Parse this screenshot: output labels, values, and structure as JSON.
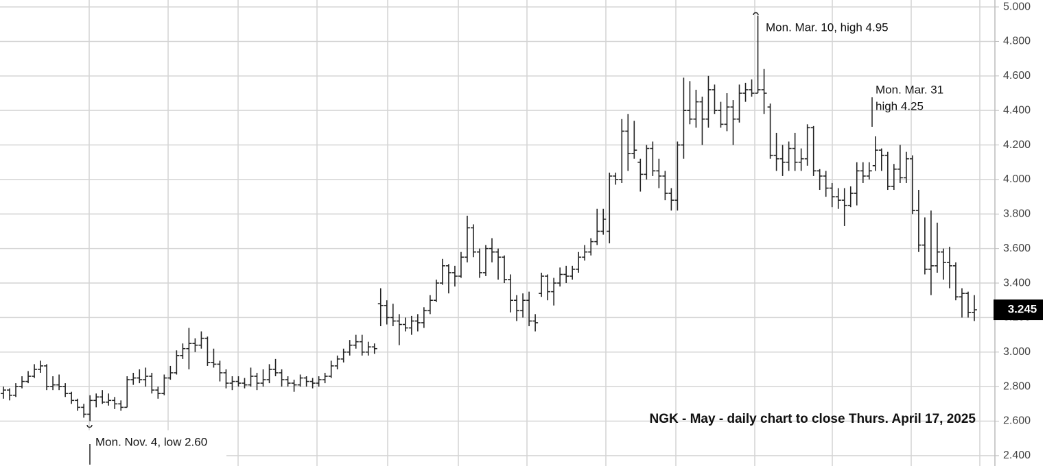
{
  "chart_data": {
    "type": "ohlc",
    "title": "NGK - May - daily chart to close Thurs. April 17, 2025",
    "annotations": [
      "Mon. Mar. 10, high 4.95",
      "Mon. Mar. 31",
      "high 4.25",
      "Mon. Nov. 4, low 2.60"
    ],
    "last_price": 3.245,
    "color": "#222222",
    "grid": true,
    "ylim": [
      2.34,
      5.04
    ],
    "yticks": [
      {
        "value": 2.4,
        "label": "2.400"
      },
      {
        "value": 2.6,
        "label": "2.600"
      },
      {
        "value": 2.8,
        "label": "2.800"
      },
      {
        "value": 3.0,
        "label": "3.000"
      },
      {
        "value": 3.2,
        "label": "3.200"
      },
      {
        "value": 3.4,
        "label": "3.400"
      },
      {
        "value": 3.6,
        "label": "3.600"
      },
      {
        "value": 3.8,
        "label": "3.800"
      },
      {
        "value": 4.0,
        "label": "4.000"
      },
      {
        "value": 4.2,
        "label": "4.200"
      },
      {
        "value": 4.4,
        "label": "4.400"
      },
      {
        "value": 4.6,
        "label": "4.600"
      },
      {
        "value": 4.8,
        "label": "4.800"
      },
      {
        "value": 5.0,
        "label": "5.000"
      }
    ],
    "bars": [
      [
        2.76,
        2.8,
        2.73,
        2.78
      ],
      [
        2.78,
        2.79,
        2.72,
        2.75
      ],
      [
        2.75,
        2.82,
        2.74,
        2.8
      ],
      [
        2.8,
        2.86,
        2.79,
        2.83
      ],
      [
        2.83,
        2.89,
        2.82,
        2.86
      ],
      [
        2.86,
        2.93,
        2.85,
        2.9
      ],
      [
        2.9,
        2.95,
        2.88,
        2.92
      ],
      [
        2.92,
        2.93,
        2.78,
        2.8
      ],
      [
        2.8,
        2.86,
        2.78,
        2.81
      ],
      [
        2.81,
        2.87,
        2.78,
        2.8
      ],
      [
        2.8,
        2.82,
        2.74,
        2.76
      ],
      [
        2.76,
        2.77,
        2.7,
        2.72
      ],
      [
        2.72,
        2.73,
        2.66,
        2.68
      ],
      [
        2.68,
        2.7,
        2.62,
        2.64
      ],
      [
        2.64,
        2.75,
        2.6,
        2.72
      ],
      [
        2.72,
        2.76,
        2.68,
        2.74
      ],
      [
        2.74,
        2.78,
        2.7,
        2.71
      ],
      [
        2.71,
        2.76,
        2.69,
        2.72
      ],
      [
        2.72,
        2.74,
        2.67,
        2.7
      ],
      [
        2.7,
        2.72,
        2.66,
        2.68
      ],
      [
        2.68,
        2.86,
        2.68,
        2.84
      ],
      [
        2.84,
        2.88,
        2.81,
        2.85
      ],
      [
        2.85,
        2.9,
        2.82,
        2.84
      ],
      [
        2.84,
        2.91,
        2.8,
        2.86
      ],
      [
        2.86,
        2.88,
        2.76,
        2.78
      ],
      [
        2.78,
        2.8,
        2.73,
        2.76
      ],
      [
        2.76,
        2.87,
        2.75,
        2.85
      ],
      [
        2.85,
        2.92,
        2.84,
        2.88
      ],
      [
        2.88,
        3.01,
        2.87,
        2.98
      ],
      [
        2.98,
        3.05,
        2.96,
        3.02
      ],
      [
        3.02,
        3.14,
        2.9,
        3.05
      ],
      [
        3.05,
        3.08,
        3.0,
        3.04
      ],
      [
        3.04,
        3.12,
        3.02,
        3.08
      ],
      [
        3.08,
        3.09,
        2.92,
        2.94
      ],
      [
        2.94,
        3.02,
        2.91,
        2.93
      ],
      [
        2.93,
        2.95,
        2.83,
        2.88
      ],
      [
        2.88,
        2.9,
        2.79,
        2.82
      ],
      [
        2.82,
        2.86,
        2.78,
        2.83
      ],
      [
        2.83,
        2.86,
        2.8,
        2.82
      ],
      [
        2.82,
        2.85,
        2.79,
        2.81
      ],
      [
        2.81,
        2.91,
        2.8,
        2.86
      ],
      [
        2.86,
        2.88,
        2.78,
        2.82
      ],
      [
        2.82,
        2.9,
        2.8,
        2.84
      ],
      [
        2.84,
        2.93,
        2.82,
        2.9
      ],
      [
        2.9,
        2.96,
        2.86,
        2.88
      ],
      [
        2.88,
        2.9,
        2.8,
        2.84
      ],
      [
        2.84,
        2.86,
        2.8,
        2.82
      ],
      [
        2.82,
        2.84,
        2.77,
        2.81
      ],
      [
        2.81,
        2.87,
        2.8,
        2.85
      ],
      [
        2.85,
        2.86,
        2.8,
        2.83
      ],
      [
        2.83,
        2.85,
        2.79,
        2.82
      ],
      [
        2.82,
        2.86,
        2.8,
        2.84
      ],
      [
        2.84,
        2.88,
        2.82,
        2.86
      ],
      [
        2.86,
        2.95,
        2.85,
        2.92
      ],
      [
        2.92,
        2.98,
        2.9,
        2.96
      ],
      [
        2.96,
        3.02,
        2.94,
        3.0
      ],
      [
        3.0,
        3.07,
        2.98,
        3.04
      ],
      [
        3.04,
        3.1,
        3.02,
        3.06
      ],
      [
        3.06,
        3.1,
        2.98,
        3.0
      ],
      [
        3.0,
        3.06,
        2.98,
        3.03
      ],
      [
        3.03,
        3.05,
        2.99,
        3.02
      ],
      [
        3.28,
        3.37,
        3.15,
        3.27
      ],
      [
        3.27,
        3.3,
        3.16,
        3.2
      ],
      [
        3.2,
        3.28,
        3.15,
        3.18
      ],
      [
        3.18,
        3.22,
        3.04,
        3.16
      ],
      [
        3.16,
        3.2,
        3.12,
        3.14
      ],
      [
        3.14,
        3.21,
        3.1,
        3.18
      ],
      [
        3.18,
        3.22,
        3.12,
        3.17
      ],
      [
        3.17,
        3.26,
        3.14,
        3.24
      ],
      [
        3.24,
        3.33,
        3.22,
        3.3
      ],
      [
        3.3,
        3.42,
        3.29,
        3.4
      ],
      [
        3.4,
        3.54,
        3.39,
        3.5
      ],
      [
        3.5,
        3.51,
        3.34,
        3.46
      ],
      [
        3.46,
        3.5,
        3.38,
        3.44
      ],
      [
        3.44,
        3.58,
        3.43,
        3.55
      ],
      [
        3.55,
        3.79,
        3.52,
        3.72
      ],
      [
        3.72,
        3.74,
        3.55,
        3.58
      ],
      [
        3.58,
        3.6,
        3.43,
        3.46
      ],
      [
        3.46,
        3.62,
        3.44,
        3.6
      ],
      [
        3.6,
        3.66,
        3.52,
        3.58
      ],
      [
        3.58,
        3.6,
        3.42,
        3.55
      ],
      [
        3.55,
        3.56,
        3.4,
        3.42
      ],
      [
        3.42,
        3.45,
        3.23,
        3.3
      ],
      [
        3.3,
        3.33,
        3.18,
        3.24
      ],
      [
        3.24,
        3.34,
        3.2,
        3.3
      ],
      [
        3.3,
        3.35,
        3.15,
        3.18
      ],
      [
        3.18,
        3.22,
        3.12,
        3.17
      ],
      [
        3.34,
        3.46,
        3.32,
        3.44
      ],
      [
        3.44,
        3.45,
        3.3,
        3.35
      ],
      [
        3.35,
        3.43,
        3.27,
        3.4
      ],
      [
        3.4,
        3.49,
        3.38,
        3.45
      ],
      [
        3.45,
        3.5,
        3.4,
        3.44
      ],
      [
        3.44,
        3.5,
        3.42,
        3.48
      ],
      [
        3.48,
        3.58,
        3.46,
        3.55
      ],
      [
        3.55,
        3.62,
        3.53,
        3.58
      ],
      [
        3.58,
        3.66,
        3.56,
        3.64
      ],
      [
        3.64,
        3.83,
        3.62,
        3.7
      ],
      [
        3.7,
        3.83,
        3.68,
        3.77
      ],
      [
        3.7,
        4.04,
        3.63,
        4.02
      ],
      [
        4.02,
        4.04,
        3.97,
        4.0
      ],
      [
        4.0,
        4.35,
        3.98,
        4.28
      ],
      [
        4.28,
        4.38,
        4.05,
        4.15
      ],
      [
        4.15,
        4.34,
        4.12,
        4.17
      ],
      [
        4.1,
        4.12,
        3.93,
        4.03
      ],
      [
        4.03,
        4.2,
        4.0,
        4.18
      ],
      [
        4.18,
        4.22,
        4.02,
        4.05
      ],
      [
        4.05,
        4.12,
        3.95,
        4.02
      ],
      [
        4.02,
        4.05,
        3.88,
        3.92
      ],
      [
        3.92,
        3.95,
        3.82,
        3.88
      ],
      [
        3.88,
        4.22,
        3.82,
        4.2
      ],
      [
        4.2,
        4.59,
        4.12,
        4.4
      ],
      [
        4.4,
        4.57,
        4.32,
        4.35
      ],
      [
        4.35,
        4.52,
        4.3,
        4.45
      ],
      [
        4.45,
        4.48,
        4.2,
        4.35
      ],
      [
        4.35,
        4.6,
        4.3,
        4.52
      ],
      [
        4.52,
        4.55,
        4.38,
        4.4
      ],
      [
        4.4,
        4.45,
        4.3,
        4.32
      ],
      [
        4.32,
        4.5,
        4.28,
        4.42
      ],
      [
        4.42,
        4.46,
        4.2,
        4.35
      ],
      [
        4.35,
        4.55,
        4.33,
        4.5
      ],
      [
        4.5,
        4.56,
        4.45,
        4.52
      ],
      [
        4.52,
        4.58,
        4.48,
        4.5
      ],
      [
        4.5,
        4.95,
        4.5,
        4.52
      ],
      [
        4.52,
        4.64,
        4.38,
        4.5
      ],
      [
        4.42,
        4.44,
        4.12,
        4.14
      ],
      [
        4.14,
        4.27,
        4.05,
        4.12
      ],
      [
        4.12,
        4.2,
        4.02,
        4.1
      ],
      [
        4.1,
        4.22,
        4.05,
        4.18
      ],
      [
        4.18,
        4.27,
        4.05,
        4.1
      ],
      [
        4.1,
        4.18,
        4.05,
        4.12
      ],
      [
        4.12,
        4.32,
        4.08,
        4.3
      ],
      [
        4.3,
        4.31,
        4.02,
        4.05
      ],
      [
        4.05,
        4.06,
        3.94,
        4.02
      ],
      [
        4.02,
        4.05,
        3.9,
        3.95
      ],
      [
        3.95,
        3.98,
        3.84,
        3.9
      ],
      [
        3.9,
        3.95,
        3.83,
        3.88
      ],
      [
        3.88,
        3.95,
        3.73,
        3.85
      ],
      [
        3.85,
        3.96,
        3.84,
        3.92
      ],
      [
        3.92,
        4.1,
        3.85,
        4.05
      ],
      [
        4.05,
        4.1,
        3.98,
        4.02
      ],
      [
        4.02,
        4.1,
        4.0,
        4.05
      ],
      [
        4.08,
        4.25,
        4.05,
        4.17
      ],
      [
        4.17,
        4.18,
        4.05,
        4.14
      ],
      [
        4.14,
        4.16,
        3.94,
        3.96
      ],
      [
        3.96,
        4.09,
        3.94,
        4.06
      ],
      [
        4.06,
        4.2,
        3.98,
        4.01
      ],
      [
        4.01,
        4.16,
        3.98,
        4.12
      ],
      [
        4.12,
        4.14,
        3.8,
        3.82
      ],
      [
        3.82,
        3.94,
        3.58,
        3.62
      ],
      [
        3.62,
        3.78,
        3.45,
        3.48
      ],
      [
        3.48,
        3.82,
        3.33,
        3.5
      ],
      [
        3.5,
        3.75,
        3.46,
        3.58
      ],
      [
        3.58,
        3.6,
        3.42,
        3.52
      ],
      [
        3.52,
        3.61,
        3.37,
        3.5
      ],
      [
        3.5,
        3.52,
        3.3,
        3.32
      ],
      [
        3.32,
        3.37,
        3.2,
        3.34
      ],
      [
        3.34,
        3.35,
        3.2,
        3.23
      ],
      [
        3.23,
        3.33,
        3.18,
        3.245
      ]
    ]
  }
}
